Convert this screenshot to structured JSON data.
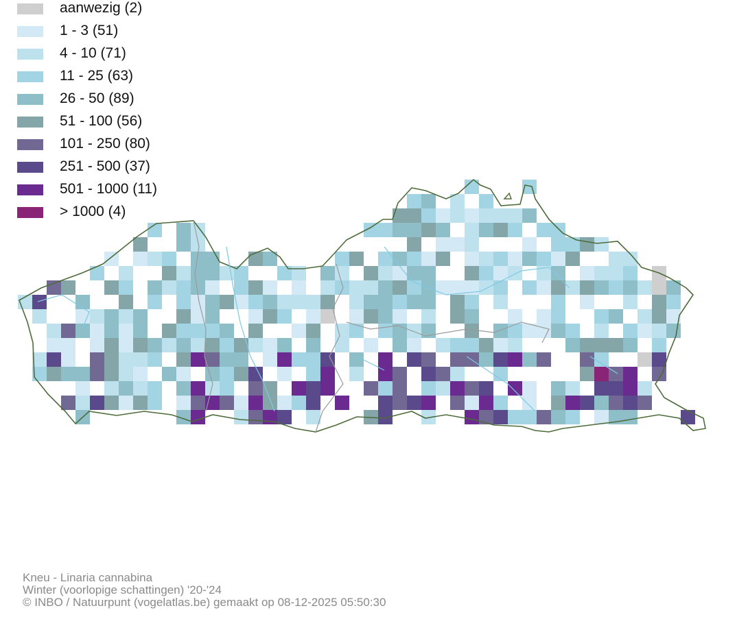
{
  "legend": [
    {
      "label": "aanwezig (2)",
      "color": "#cfcfcf"
    },
    {
      "label": "1 - 3 (51)",
      "color": "#d3e9f6"
    },
    {
      "label": "4 - 10 (71)",
      "color": "#bde2ee"
    },
    {
      "label": "11 - 25 (63)",
      "color": "#a3d4e3"
    },
    {
      "label": "26 - 50 (89)",
      "color": "#8ebfc9"
    },
    {
      "label": "51 - 100 (56)",
      "color": "#85a6a8"
    },
    {
      "label": "101 - 250 (80)",
      "color": "#716994"
    },
    {
      "label": "251 - 500 (37)",
      "color": "#5a4a8b"
    },
    {
      "label": "501 - 1000 (11)",
      "color": "#6a2a90"
    },
    {
      "label": "> 1000 (4)",
      "color": "#8a2477"
    }
  ],
  "map": {
    "border_color": "#4d6b3a",
    "province_border_color": "#9a9a9a",
    "river_color": "#7ec8e3"
  },
  "credits": {
    "line1": "Kneu - Linaria cannabina",
    "line2": "Winter (voorlopige schattingen) '20-'24",
    "line3": "© INBO / Natuurpunt (vogelatlas.be) gemaakt op 08-12-2025 05:50:30"
  }
}
